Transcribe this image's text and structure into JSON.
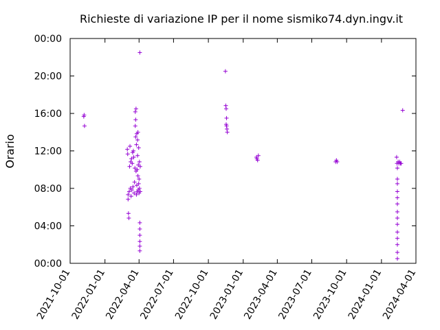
{
  "chart_data": {
    "type": "scatter",
    "title": "Richieste di variazione IP per il nome sismiko74.dyn.ingv.it",
    "xlabel": "",
    "ylabel": "Orario",
    "marker": "+",
    "color": "#9400d3",
    "grid": false,
    "x_ticks": [
      "2021-10-01",
      "2022-01-01",
      "2022-04-01",
      "2022-07-01",
      "2022-10-01",
      "2023-01-01",
      "2023-04-01",
      "2023-07-01",
      "2023-10-01",
      "2024-01-01",
      "2024-04-01"
    ],
    "y_ticks": [
      "00:00",
      "04:00",
      "08:00",
      "12:00",
      "16:00",
      "20:00",
      "00:00"
    ],
    "xlim": [
      "2021-10-01",
      "2024-04-01"
    ],
    "ylim": [
      "00:00",
      "24:00"
    ],
    "series": [
      {
        "points": [
          [
            "2021-11-06",
            "15:40"
          ],
          [
            "2021-11-07",
            "15:50"
          ],
          [
            "2021-11-08",
            "14:40"
          ],
          [
            "2022-03-01",
            "12:10"
          ],
          [
            "2022-03-02",
            "11:40"
          ],
          [
            "2022-03-03",
            "07:20"
          ],
          [
            "2022-03-03",
            "06:50"
          ],
          [
            "2022-03-04",
            "05:20"
          ],
          [
            "2022-03-05",
            "04:50"
          ],
          [
            "2022-03-06",
            "07:40"
          ],
          [
            "2022-03-07",
            "10:20"
          ],
          [
            "2022-03-08",
            "12:30"
          ],
          [
            "2022-03-09",
            "08:00"
          ],
          [
            "2022-03-10",
            "10:50"
          ],
          [
            "2022-03-11",
            "07:10"
          ],
          [
            "2022-03-12",
            "11:10"
          ],
          [
            "2022-03-13",
            "07:50"
          ],
          [
            "2022-03-14",
            "10:40"
          ],
          [
            "2022-03-15",
            "11:50"
          ],
          [
            "2022-03-16",
            "08:10"
          ],
          [
            "2022-03-17",
            "12:00"
          ],
          [
            "2022-03-18",
            "11:20"
          ],
          [
            "2022-03-19",
            "07:30"
          ],
          [
            "2022-03-20",
            "08:40"
          ],
          [
            "2022-03-21",
            "10:10"
          ],
          [
            "2022-03-22",
            "14:40"
          ],
          [
            "2022-03-22",
            "16:10"
          ],
          [
            "2022-03-23",
            "13:30"
          ],
          [
            "2022-03-23",
            "15:20"
          ],
          [
            "2022-03-24",
            "09:50"
          ],
          [
            "2022-03-24",
            "16:30"
          ],
          [
            "2022-03-25",
            "07:20"
          ],
          [
            "2022-03-25",
            "12:40"
          ],
          [
            "2022-03-26",
            "13:50"
          ],
          [
            "2022-03-26",
            "08:20"
          ],
          [
            "2022-03-27",
            "07:40"
          ],
          [
            "2022-03-27",
            "10:00"
          ],
          [
            "2022-03-28",
            "11:30"
          ],
          [
            "2022-03-28",
            "13:10"
          ],
          [
            "2022-03-29",
            "09:20"
          ],
          [
            "2022-03-29",
            "14:00"
          ],
          [
            "2022-03-30",
            "07:50"
          ],
          [
            "2022-03-30",
            "10:30"
          ],
          [
            "2022-03-31",
            "08:30"
          ],
          [
            "2022-03-31",
            "12:20"
          ],
          [
            "2022-04-01",
            "09:00"
          ],
          [
            "2022-04-01",
            "07:30"
          ],
          [
            "2022-04-02",
            "10:50"
          ],
          [
            "2022-04-02",
            "08:00"
          ],
          [
            "2022-04-03",
            "04:20"
          ],
          [
            "2022-04-03",
            "03:40"
          ],
          [
            "2022-04-03",
            "03:00"
          ],
          [
            "2022-04-03",
            "02:20"
          ],
          [
            "2022-04-03",
            "01:50"
          ],
          [
            "2022-04-03",
            "01:20"
          ],
          [
            "2022-04-03",
            "22:30"
          ],
          [
            "2022-04-04",
            "10:20"
          ],
          [
            "2022-04-04",
            "07:40"
          ],
          [
            "2022-11-15",
            "20:30"
          ],
          [
            "2022-11-16",
            "16:50"
          ],
          [
            "2022-11-17",
            "16:30"
          ],
          [
            "2022-11-18",
            "15:30"
          ],
          [
            "2022-11-18",
            "14:40"
          ],
          [
            "2022-11-19",
            "14:20"
          ],
          [
            "2022-11-20",
            "14:00"
          ],
          [
            "2022-11-17",
            "14:50"
          ],
          [
            "2023-02-05",
            "11:20"
          ],
          [
            "2023-02-06",
            "11:10"
          ],
          [
            "2023-02-08",
            "11:00"
          ],
          [
            "2023-02-10",
            "11:30"
          ],
          [
            "2023-09-02",
            "10:50"
          ],
          [
            "2023-09-04",
            "11:00"
          ],
          [
            "2023-09-06",
            "10:50"
          ],
          [
            "2024-02-10",
            "11:20"
          ],
          [
            "2024-02-11",
            "10:40"
          ],
          [
            "2024-02-12",
            "10:10"
          ],
          [
            "2024-02-12",
            "09:00"
          ],
          [
            "2024-02-12",
            "08:30"
          ],
          [
            "2024-02-12",
            "07:40"
          ],
          [
            "2024-02-12",
            "07:00"
          ],
          [
            "2024-02-12",
            "06:20"
          ],
          [
            "2024-02-12",
            "05:30"
          ],
          [
            "2024-02-12",
            "04:50"
          ],
          [
            "2024-02-12",
            "04:10"
          ],
          [
            "2024-02-12",
            "03:20"
          ],
          [
            "2024-02-12",
            "02:40"
          ],
          [
            "2024-02-12",
            "02:00"
          ],
          [
            "2024-02-12",
            "01:10"
          ],
          [
            "2024-02-12",
            "00:30"
          ],
          [
            "2024-02-14",
            "10:50"
          ],
          [
            "2024-02-16",
            "10:40"
          ],
          [
            "2024-02-18",
            "10:50"
          ],
          [
            "2024-02-20",
            "10:40"
          ],
          [
            "2024-02-22",
            "10:40"
          ],
          [
            "2024-02-26",
            "16:20"
          ]
        ]
      }
    ]
  }
}
